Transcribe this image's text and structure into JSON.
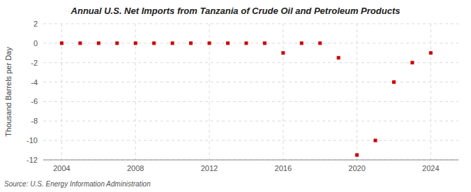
{
  "chart_data": {
    "type": "scatter",
    "title": "Annual U.S. Net Imports from Tanzania of Crude Oil and Petroleum Products",
    "ylabel": "Thousand Barrels per Day",
    "annotations": [
      "Source: U.S. Energy Information Administration"
    ],
    "x": [
      2004,
      2005,
      2006,
      2007,
      2008,
      2009,
      2010,
      2011,
      2012,
      2013,
      2014,
      2015,
      2016,
      2017,
      2018,
      2019,
      2020,
      2021,
      2022,
      2023,
      2024
    ],
    "values": [
      0,
      0,
      0,
      0,
      0,
      0,
      0,
      0,
      0,
      0,
      0,
      0,
      -1.0,
      0,
      0,
      -1.5,
      -11.5,
      -10.0,
      -4.0,
      -2.0,
      -1.0
    ],
    "color": "#cc0000",
    "marker": "square",
    "grid": true,
    "xlim": [
      2003.0,
      2025.5
    ],
    "xticks": [
      2004,
      2008,
      2012,
      2016,
      2020,
      2024
    ],
    "ylim": [
      -12,
      2
    ],
    "yticks": [
      2,
      0,
      -2,
      -4,
      -6,
      -8,
      -10,
      -12
    ]
  }
}
